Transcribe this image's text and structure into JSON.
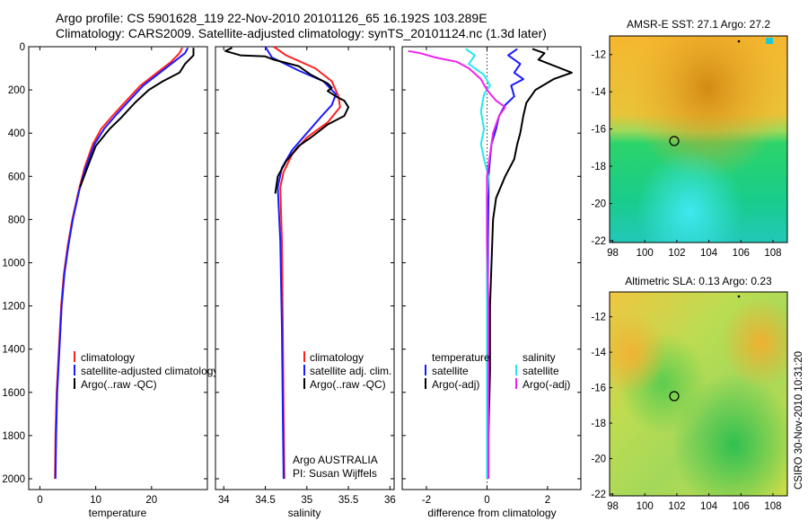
{
  "header": {
    "line1": "Argo profile: CS 5901628_119 22-Nov-2010 20101126_65 16.192S 103.289E",
    "line2": "Climatology: CARS2009. Satellite-adjusted climatology: synTS_20101124.nc (1.3d later)"
  },
  "colors": {
    "climatology": "#ff2020",
    "satellite": "#1a1aff",
    "argo": "#000000",
    "sat_salinity": "#22e8f0",
    "argo_adj_salinity": "#ee22ee"
  },
  "chart_data": [
    {
      "type": "line",
      "id": "temperature",
      "xlabel": "temperature",
      "xlim": [
        -2,
        30
      ],
      "ylim": [
        0,
        2050
      ],
      "y_inverted": true,
      "xticks": [
        "0",
        "10",
        "20"
      ],
      "yticks": [
        "0",
        "200",
        "400",
        "600",
        "800",
        "1000",
        "1200",
        "1400",
        "1600",
        "1800",
        "2000"
      ],
      "legend": [
        "climatology",
        "satellite-adjusted climatology",
        "Argo(..raw -QC)"
      ],
      "series": [
        {
          "name": "climatology",
          "color": "climatology",
          "points": [
            [
              25.5,
              5
            ],
            [
              25,
              30
            ],
            [
              23.5,
              70
            ],
            [
              21,
              120
            ],
            [
              18,
              180
            ],
            [
              15.5,
              250
            ],
            [
              13,
              320
            ],
            [
              11,
              380
            ],
            [
              9.5,
              450
            ],
            [
              8,
              560
            ],
            [
              7,
              660
            ],
            [
              5.8,
              800
            ],
            [
              5,
              920
            ],
            [
              4.3,
              1050
            ],
            [
              3.8,
              1200
            ],
            [
              3.4,
              1400
            ],
            [
              3,
              1600
            ],
            [
              2.8,
              1800
            ],
            [
              2.7,
              2000
            ]
          ]
        },
        {
          "name": "satellite-adjusted climatology",
          "color": "satellite",
          "points": [
            [
              26.5,
              5
            ],
            [
              26,
              30
            ],
            [
              24,
              70
            ],
            [
              21.5,
              120
            ],
            [
              18.5,
              180
            ],
            [
              16,
              250
            ],
            [
              13.5,
              320
            ],
            [
              11.5,
              380
            ],
            [
              9.8,
              450
            ],
            [
              8.2,
              560
            ],
            [
              7.1,
              660
            ],
            [
              5.9,
              800
            ],
            [
              5.1,
              920
            ],
            [
              4.4,
              1050
            ],
            [
              3.9,
              1200
            ],
            [
              3.5,
              1400
            ],
            [
              3.1,
              1600
            ],
            [
              2.9,
              1800
            ],
            [
              2.8,
              2000
            ]
          ]
        },
        {
          "name": "Argo(..raw -QC)",
          "color": "argo",
          "points": [
            [
              27.5,
              5
            ],
            [
              27.5,
              40
            ],
            [
              26,
              80
            ],
            [
              25,
              120
            ],
            [
              22,
              160
            ],
            [
              19.5,
              200
            ],
            [
              17,
              260
            ],
            [
              14.5,
              330
            ],
            [
              12.5,
              380
            ],
            [
              10,
              460
            ],
            [
              8.5,
              560
            ],
            [
              7.2,
              650
            ]
          ]
        }
      ]
    },
    {
      "type": "line",
      "id": "salinity",
      "xlabel": "salinity",
      "xlim": [
        33.9,
        36.05
      ],
      "ylim": [
        0,
        2050
      ],
      "y_inverted": true,
      "xticks": [
        "34",
        "34.5",
        "35",
        "35.5",
        "36"
      ],
      "legend": [
        "climatology",
        "satellite adj. clim.",
        "Argo(..raw -QC)"
      ],
      "annotation": [
        "Argo AUSTRALIA",
        "PI: Susan Wijffels"
      ],
      "series": [
        {
          "name": "climatology",
          "color": "climatology",
          "points": [
            [
              34.6,
              0
            ],
            [
              34.75,
              40
            ],
            [
              35.1,
              100
            ],
            [
              35.3,
              160
            ],
            [
              35.38,
              230
            ],
            [
              35.4,
              280
            ],
            [
              35.25,
              350
            ],
            [
              35,
              420
            ],
            [
              34.82,
              500
            ],
            [
              34.72,
              580
            ],
            [
              34.68,
              650
            ],
            [
              34.7,
              900
            ],
            [
              34.71,
              1300
            ],
            [
              34.72,
              1700
            ],
            [
              34.73,
              2000
            ]
          ]
        },
        {
          "name": "satellite adj. clim.",
          "color": "satellite",
          "points": [
            [
              34.5,
              0
            ],
            [
              34.58,
              50
            ],
            [
              34.9,
              110
            ],
            [
              35.2,
              160
            ],
            [
              35.35,
              220
            ],
            [
              35.3,
              270
            ],
            [
              35.18,
              320
            ],
            [
              35,
              400
            ],
            [
              34.82,
              480
            ],
            [
              34.7,
              560
            ],
            [
              34.65,
              650
            ],
            [
              34.68,
              900
            ],
            [
              34.7,
              1300
            ],
            [
              34.71,
              1700
            ],
            [
              34.72,
              2000
            ]
          ]
        },
        {
          "name": "Argo(..raw -QC)",
          "color": "argo",
          "points": [
            [
              34.1,
              5
            ],
            [
              34.02,
              20
            ],
            [
              34.2,
              40
            ],
            [
              34.5,
              45
            ],
            [
              34.6,
              60
            ],
            [
              34.9,
              90
            ],
            [
              35.05,
              130
            ],
            [
              35.25,
              170
            ],
            [
              35.3,
              190
            ],
            [
              35.25,
              205
            ],
            [
              35.35,
              230
            ],
            [
              35.45,
              250
            ],
            [
              35.5,
              280
            ],
            [
              35.45,
              320
            ],
            [
              35.25,
              360
            ],
            [
              35.05,
              420
            ],
            [
              34.9,
              460
            ],
            [
              34.75,
              530
            ],
            [
              34.65,
              600
            ],
            [
              34.62,
              680
            ]
          ]
        }
      ]
    },
    {
      "type": "line",
      "id": "difference",
      "xlabel": "difference from climatology",
      "xlim": [
        -2.8,
        3.1
      ],
      "ylim": [
        0,
        2050
      ],
      "y_inverted": true,
      "xticks": [
        "-2",
        "0",
        "2"
      ],
      "legend_titles": [
        "temperature",
        "salinity"
      ],
      "legend_left": [
        "satellite",
        "Argo(-adj)"
      ],
      "legend_right": [
        "satellite",
        "Argo(-adj)"
      ],
      "series": [
        {
          "name": "temperature satellite",
          "color": "satellite",
          "points": [
            [
              1,
              10
            ],
            [
              0.7,
              40
            ],
            [
              1.1,
              80
            ],
            [
              0.9,
              120
            ],
            [
              1.2,
              150
            ],
            [
              0.8,
              180
            ],
            [
              0.9,
              230
            ],
            [
              0.6,
              270
            ],
            [
              0.4,
              320
            ],
            [
              0.3,
              380
            ],
            [
              0.15,
              450
            ],
            [
              0.1,
              520
            ],
            [
              0.05,
              600
            ],
            [
              0.05,
              700
            ],
            [
              0.03,
              900
            ],
            [
              0.03,
              1200
            ],
            [
              0.02,
              1500
            ],
            [
              0.02,
              1800
            ],
            [
              0.02,
              2000
            ]
          ]
        },
        {
          "name": "temperature Argo(-adj)",
          "color": "argo",
          "points": [
            [
              1.5,
              10
            ],
            [
              1.9,
              30
            ],
            [
              1.7,
              60
            ],
            [
              2.8,
              120
            ],
            [
              2.2,
              150
            ],
            [
              1.6,
              200
            ],
            [
              1.3,
              260
            ],
            [
              1.2,
              320
            ],
            [
              1.1,
              400
            ],
            [
              1,
              450
            ],
            [
              0.9,
              520
            ],
            [
              0.6,
              600
            ],
            [
              0.3,
              700
            ],
            [
              0.2,
              800
            ],
            [
              0.15,
              1000
            ],
            [
              0.1,
              1200
            ],
            [
              0.1,
              1500
            ],
            [
              0.05,
              1800
            ],
            [
              0.05,
              2000
            ]
          ]
        },
        {
          "name": "salinity satellite",
          "color": "sat_salinity",
          "points": [
            [
              -0.7,
              10
            ],
            [
              -0.4,
              40
            ],
            [
              -0.6,
              80
            ],
            [
              -0.1,
              130
            ],
            [
              0.1,
              180
            ],
            [
              -0.1,
              220
            ],
            [
              -0.2,
              300
            ],
            [
              -0.1,
              380
            ],
            [
              -0.2,
              450
            ],
            [
              -0.1,
              520
            ],
            [
              0.05,
              600
            ],
            [
              0,
              700
            ],
            [
              0,
              900
            ],
            [
              0,
              1200
            ],
            [
              0,
              1500
            ],
            [
              0,
              1800
            ],
            [
              0,
              2000
            ]
          ]
        },
        {
          "name": "salinity Argo(-adj)",
          "color": "argo_adj_salinity",
          "points": [
            [
              -2.6,
              20
            ],
            [
              -2.2,
              30
            ],
            [
              -1.7,
              50
            ],
            [
              -1,
              70
            ],
            [
              -0.6,
              100
            ],
            [
              -0.2,
              150
            ],
            [
              0,
              200
            ],
            [
              0.3,
              250
            ],
            [
              0.6,
              280
            ],
            [
              0.4,
              320
            ],
            [
              0.2,
              400
            ],
            [
              0.1,
              500
            ],
            [
              0,
              600
            ],
            [
              0,
              900
            ],
            [
              0.05,
              1200
            ],
            [
              0.05,
              1600
            ],
            [
              0.05,
              2000
            ]
          ]
        }
      ]
    }
  ],
  "maps": [
    {
      "id": "sst",
      "title": "AMSR-E SST: 27.1 Argo: 27.2",
      "yticks": [
        "-12",
        "-14",
        "-16",
        "-18",
        "-20",
        "-22"
      ],
      "xticks": [
        "98",
        "100",
        "102",
        "104",
        "106",
        "108"
      ],
      "colormap": "sst-orange-green-cyan"
    },
    {
      "id": "sla",
      "title": "Altimetric SLA: 0.13 Argo: 0.23",
      "yticks": [
        "-12",
        "-14",
        "-16",
        "-18",
        "-20",
        "-22"
      ],
      "xticks": [
        "98",
        "100",
        "102",
        "104",
        "106",
        "108"
      ],
      "colormap": "sla-green-yellow-orange"
    }
  ],
  "footer": {
    "credit": "CSIRO 30-Nov-2010 10:31:20"
  }
}
